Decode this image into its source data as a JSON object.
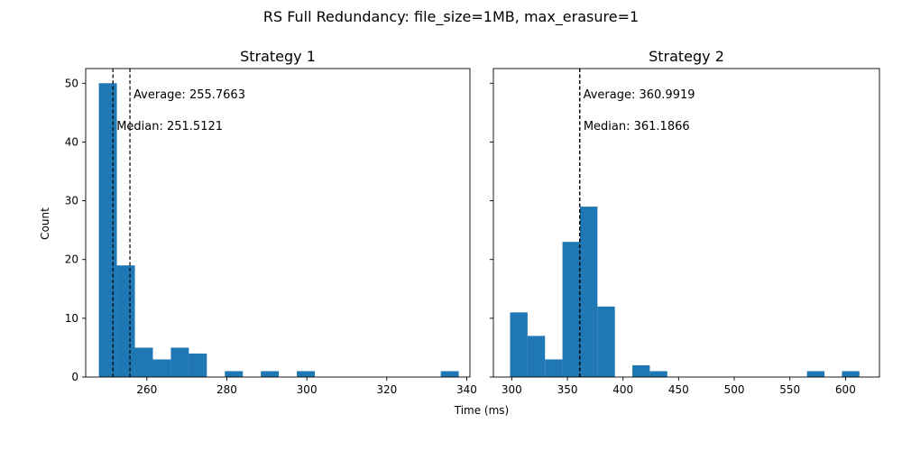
{
  "suptitle": "RS Full Redundancy: file_size=1MB, max_erasure=1",
  "shared": {
    "xlabel": "Time (ms)",
    "ylabel": "Count",
    "ylim": [
      0,
      52.5
    ],
    "yticks": [
      0,
      10,
      20,
      30,
      40,
      50
    ],
    "bar_color": "#1f77b4"
  },
  "chart_data": [
    {
      "type": "bar",
      "title": "Strategy 1",
      "xlim": [
        244.7,
        340.8
      ],
      "xticks": [
        260,
        280,
        300,
        320,
        340
      ],
      "bin_edges": [
        248.0,
        252.5,
        257.0,
        261.5,
        266.0,
        270.5,
        275.0,
        279.5,
        284.0,
        288.5,
        293.0,
        297.5,
        302.0,
        306.5,
        311.0,
        315.5,
        320.0,
        324.5,
        329.0,
        333.5,
        338.0
      ],
      "counts": [
        50,
        19,
        5,
        3,
        5,
        4,
        0,
        1,
        0,
        1,
        0,
        1,
        0,
        0,
        0,
        0,
        0,
        0,
        0,
        1
      ],
      "average": 255.7663,
      "median": 251.5121,
      "average_label": "Average: 255.7663",
      "median_label": "Median: 251.5121"
    },
    {
      "type": "bar",
      "title": "Strategy 2",
      "xlim": [
        283.5,
        630.5
      ],
      "xticks": [
        300,
        350,
        400,
        450,
        500,
        550,
        600
      ],
      "bin_edges": [
        298.5,
        314.2,
        329.9,
        345.6,
        361.3,
        377.0,
        392.7,
        408.4,
        424.1,
        439.8,
        455.5,
        471.2,
        486.9,
        502.6,
        518.3,
        534.0,
        549.7,
        565.4,
        581.1,
        596.8,
        612.5
      ],
      "counts": [
        11,
        7,
        3,
        23,
        29,
        12,
        0,
        2,
        1,
        0,
        0,
        0,
        0,
        0,
        0,
        0,
        0,
        1,
        0,
        1
      ],
      "average": 360.9919,
      "median": 361.1866,
      "average_label": "Average: 360.9919",
      "median_label": "Median: 361.1866"
    }
  ]
}
